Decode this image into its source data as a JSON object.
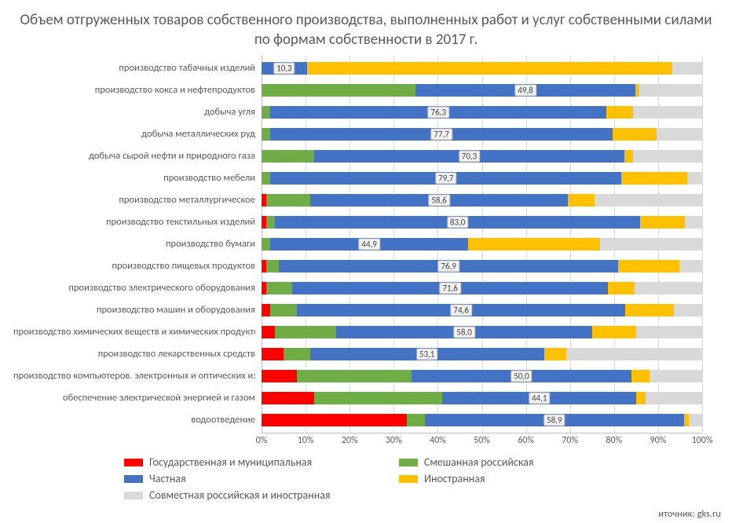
{
  "chart": {
    "type": "stacked-bar-horizontal-100pct",
    "title": "Объем отгруженных товаров собственного производства, выполненных работ и услуг собственными силами по формам собственности в 2017 г.",
    "source_label": "иточник: gks.ru",
    "title_fontsize": 19,
    "title_color": "#595959",
    "background_color": "#ffffff",
    "grid_color": "#d9d9d9",
    "axis_color": "#bfbfbf",
    "cat_fontsize": 12.5,
    "label_fontsize": 12,
    "xlim": [
      0,
      100
    ],
    "xtick_step": 10,
    "xtick_labels": [
      "0%",
      "10%",
      "20%",
      "30%",
      "40%",
      "50%",
      "60%",
      "70%",
      "80%",
      "90%",
      "100%"
    ],
    "series": [
      {
        "key": "gov",
        "label": "Государственная и муниципальная",
        "color": "#ff0000"
      },
      {
        "key": "mixed",
        "label": "Смешанная российская",
        "color": "#70ad47"
      },
      {
        "key": "private",
        "label": "Частная",
        "color": "#4472c4"
      },
      {
        "key": "foreign",
        "label": "Иностранная",
        "color": "#ffc000"
      },
      {
        "key": "joint",
        "label": "Совместная российская и иностранная",
        "color": "#d9d9d9"
      }
    ],
    "private_label_suffix": "",
    "categories": [
      {
        "name": "производство табачных изделий",
        "v": {
          "gov": 0,
          "mixed": 0,
          "private": 10.3,
          "foreign": 83,
          "joint": 6.7
        },
        "dl": "10,3"
      },
      {
        "name": "производство кокса и нефтепродуктов",
        "v": {
          "gov": 0,
          "mixed": 35,
          "private": 49.8,
          "foreign": 1,
          "joint": 14.2
        },
        "dl": "49,8"
      },
      {
        "name": "добыча угля",
        "v": {
          "gov": 0,
          "mixed": 2,
          "private": 76.3,
          "foreign": 6,
          "joint": 15.7
        },
        "dl": "76,3"
      },
      {
        "name": "добыча металлических руд",
        "v": {
          "gov": 0,
          "mixed": 2,
          "private": 77.7,
          "foreign": 10,
          "joint": 10.3
        },
        "dl": "77,7"
      },
      {
        "name": "добыча сырой нефти и природного газа",
        "v": {
          "gov": 0,
          "mixed": 12,
          "private": 70.3,
          "foreign": 2,
          "joint": 15.7
        },
        "dl": "70,3"
      },
      {
        "name": "производство мебели",
        "v": {
          "gov": 0,
          "mixed": 2,
          "private": 79.7,
          "foreign": 15,
          "joint": 3.3
        },
        "dl": "79,7"
      },
      {
        "name": "производство металлургическое",
        "v": {
          "gov": 1,
          "mixed": 10,
          "private": 58.6,
          "foreign": 6,
          "joint": 24.4
        },
        "dl": "58,6"
      },
      {
        "name": "производство текстильных изделий",
        "v": {
          "gov": 1,
          "mixed": 2,
          "private": 83.0,
          "foreign": 10,
          "joint": 4.0
        },
        "dl": "83,0"
      },
      {
        "name": "производство бумаги",
        "v": {
          "gov": 0,
          "mixed": 2,
          "private": 44.9,
          "foreign": 30,
          "joint": 23.1
        },
        "dl": "44,9"
      },
      {
        "name": "производство пищевых продуктов",
        "v": {
          "gov": 1,
          "mixed": 3,
          "private": 76.9,
          "foreign": 14,
          "joint": 5.1
        },
        "dl": "76,9"
      },
      {
        "name": "производство электрического оборудования",
        "v": {
          "gov": 1,
          "mixed": 6,
          "private": 71.6,
          "foreign": 6,
          "joint": 15.4
        },
        "dl": "71,6"
      },
      {
        "name": "производство машин и оборудования",
        "v": {
          "gov": 2,
          "mixed": 6,
          "private": 74.6,
          "foreign": 11,
          "joint": 6.4
        },
        "dl": "74,6"
      },
      {
        "name": "производство химических веществ и химических продуктов",
        "v": {
          "gov": 3,
          "mixed": 14,
          "private": 58.0,
          "foreign": 10,
          "joint": 15.0
        },
        "dl": "58,0"
      },
      {
        "name": "производство лекарственных средств",
        "v": {
          "gov": 5,
          "mixed": 6,
          "private": 53.1,
          "foreign": 5,
          "joint": 30.9
        },
        "dl": "53,1"
      },
      {
        "name": "производство компьютеров. электронных и оптических изделий",
        "v": {
          "gov": 8,
          "mixed": 26,
          "private": 50.0,
          "foreign": 4,
          "joint": 12.0
        },
        "dl": "50,0"
      },
      {
        "name": "обеспечение электрической энергией и газом",
        "v": {
          "gov": 12,
          "mixed": 29,
          "private": 44.1,
          "foreign": 2,
          "joint": 12.9
        },
        "dl": "44,1"
      },
      {
        "name": "водоотведение",
        "v": {
          "gov": 33,
          "mixed": 4,
          "private": 58.9,
          "foreign": 1,
          "joint": 3.1
        },
        "dl": "58,9"
      }
    ]
  }
}
